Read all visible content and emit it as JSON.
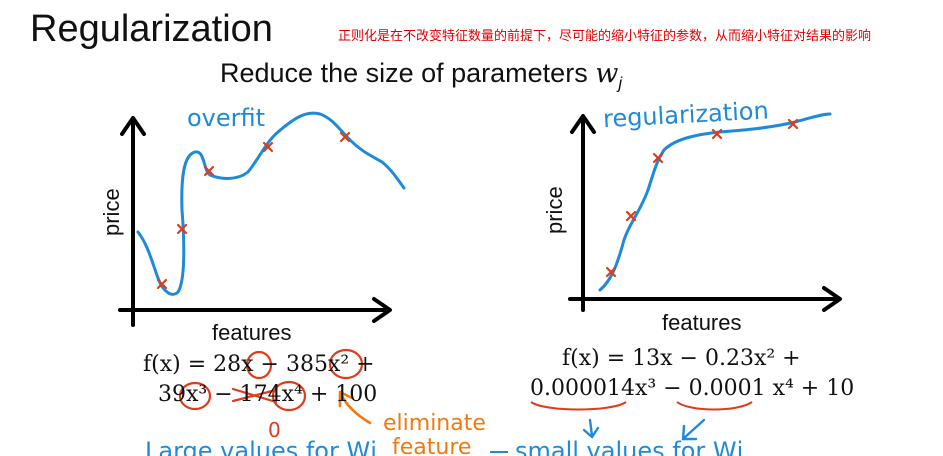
{
  "slide": {
    "title": "Regularization",
    "note_cn": "正则化是在不改变特征数量的前提下，尽可能的缩小特征的参数，从而缩小特征对结果的影响",
    "subtitle_text": "Reduce the size of parameters",
    "subtitle_var": "w",
    "subtitle_sub": "j"
  },
  "left_plot": {
    "annotation": "overfit",
    "ylabel": "price",
    "xlabel": "features",
    "eq_line1": "f(x) = 28x − 385x² +",
    "eq_line2": "39x³ − 174x⁴ + 100",
    "zero_mark": "0",
    "eliminate_label_1": "eliminate",
    "eliminate_label_2": "feature",
    "bottom_note": "Large values for Wj"
  },
  "right_plot": {
    "annotation": "regularization",
    "ylabel": "price",
    "xlabel": "features",
    "eq_line1": "f(x) = 13x − 0.23x² +",
    "eq_line2": "0.000014x³ − 0.0001 x⁴ + 10",
    "bottom_note": "small values for Wj"
  },
  "colors": {
    "ink_blue": "#1f8ad8",
    "marker_red": "#e03b1a",
    "annotation_orange": "#f07a10",
    "note_red": "#e00000"
  }
}
